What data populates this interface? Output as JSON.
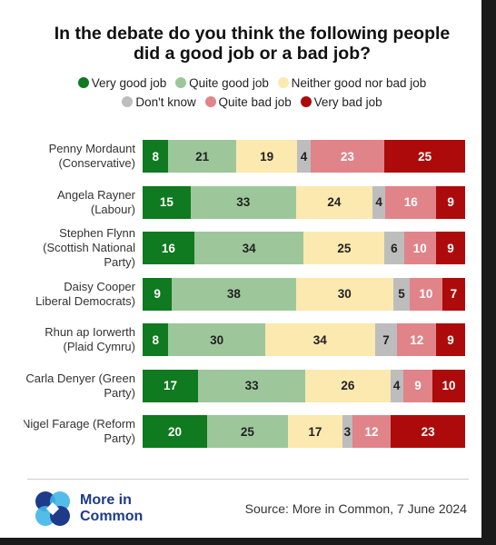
{
  "title_line1": "In the debate do you think the following people",
  "title_line2": "did a good job or a bad job?",
  "legend": [
    {
      "label": "Very good job",
      "color": "#0f7a1f"
    },
    {
      "label": "Quite good job",
      "color": "#9dc79a"
    },
    {
      "label": "Neither good nor bad job",
      "color": "#fbe9b0"
    },
    {
      "label": "Don't know",
      "color": "#bdbdbd"
    },
    {
      "label": "Quite bad job",
      "color": "#e08489"
    },
    {
      "label": "Very bad job",
      "color": "#ad0b0b"
    }
  ],
  "chart_data": {
    "type": "bar",
    "orientation": "horizontal",
    "stacked": true,
    "title": "In the debate do you think the following people did a good job or a bad job?",
    "categories": [
      "Penny Mordaunt (Conservative)",
      "Angela Rayner (Labour)",
      "Stephen Flynn (Scottish National Party)",
      "Daisy Cooper (Liberal Democrats)",
      "Rhun ap Iorwerth (Plaid Cymru)",
      "Carla Denyer (Green Party)",
      "Nigel Farage (Reform Party)"
    ],
    "series": [
      {
        "name": "Very good job",
        "color": "#0f7a1f",
        "values": [
          8,
          15,
          16,
          9,
          8,
          17,
          20
        ]
      },
      {
        "name": "Quite good job",
        "color": "#9dc79a",
        "values": [
          21,
          33,
          34,
          38,
          30,
          33,
          25
        ]
      },
      {
        "name": "Neither good nor bad job",
        "color": "#fbe9b0",
        "values": [
          19,
          24,
          25,
          30,
          34,
          26,
          17
        ]
      },
      {
        "name": "Don't know",
        "color": "#bdbdbd",
        "values": [
          4,
          4,
          6,
          5,
          7,
          4,
          3
        ]
      },
      {
        "name": "Quite bad job",
        "color": "#e08489",
        "values": [
          23,
          16,
          10,
          10,
          12,
          9,
          12
        ]
      },
      {
        "name": "Very bad job",
        "color": "#ad0b0b",
        "values": [
          25,
          9,
          9,
          7,
          9,
          10,
          23
        ]
      }
    ],
    "legend_position": "top",
    "grid": false
  },
  "rows": [
    {
      "label_lines": [
        "Penny Mordaunt",
        "(Conservative)"
      ]
    },
    {
      "label_lines": [
        "Angela Rayner",
        "(Labour)"
      ]
    },
    {
      "label_lines": [
        "Stephen Flynn",
        "(Scottish National",
        "Party)"
      ]
    },
    {
      "label_lines": [
        "Daisy Cooper",
        "Liberal Democrats)"
      ]
    },
    {
      "label_lines": [
        "Rhun ap Iorwerth",
        "(Plaid Cymru)"
      ]
    },
    {
      "label_lines": [
        "Carla Denyer (Green",
        "Party)"
      ]
    },
    {
      "label_lines": [
        "Nigel Farage (Reform",
        "Party)"
      ]
    }
  ],
  "brand": {
    "line1": "More in",
    "line2": "Common"
  },
  "source": "Source: More in Common, 7 June 2024"
}
